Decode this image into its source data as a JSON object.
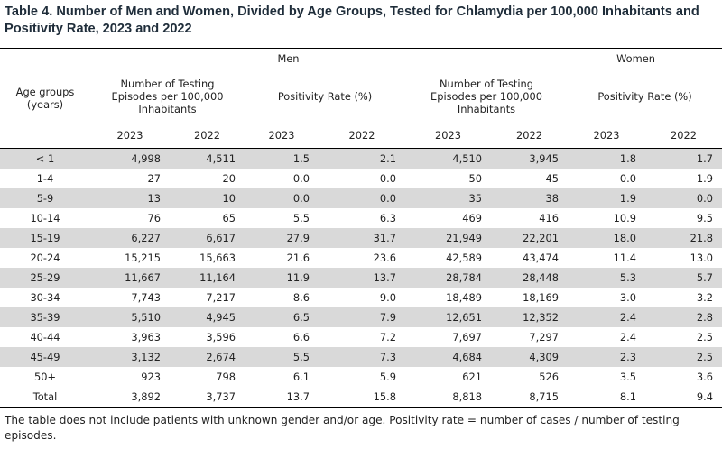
{
  "title": "Table 4. Number of Men and Women, Divided by Age Groups, Tested for Chlamydia per 100,000 Inhabitants and Positivity Rate, 2023 and 2022",
  "header": {
    "age_groups": "Age groups (years)",
    "men": "Men",
    "women": "Women",
    "testing": "Number of Testing Episodes per 100,000 Inhabitants",
    "positivity": "Positivity Rate (%)",
    "year_a": "2023",
    "year_b": "2022"
  },
  "rows": [
    {
      "age": "< 1",
      "men_test_2023": "4,998",
      "men_test_2022": "4,511",
      "men_pos_2023": "1.5",
      "men_pos_2022": "2.1",
      "women_test_2023": "4,510",
      "women_test_2022": "3,945",
      "women_pos_2023": "1.8",
      "women_pos_2022": "1.7"
    },
    {
      "age": "1-4",
      "men_test_2023": "27",
      "men_test_2022": "20",
      "men_pos_2023": "0.0",
      "men_pos_2022": "0.0",
      "women_test_2023": "50",
      "women_test_2022": "45",
      "women_pos_2023": "0.0",
      "women_pos_2022": "1.9"
    },
    {
      "age": "5-9",
      "men_test_2023": "13",
      "men_test_2022": "10",
      "men_pos_2023": "0.0",
      "men_pos_2022": "0.0",
      "women_test_2023": "35",
      "women_test_2022": "38",
      "women_pos_2023": "1.9",
      "women_pos_2022": "0.0"
    },
    {
      "age": "10-14",
      "men_test_2023": "76",
      "men_test_2022": "65",
      "men_pos_2023": "5.5",
      "men_pos_2022": "6.3",
      "women_test_2023": "469",
      "women_test_2022": "416",
      "women_pos_2023": "10.9",
      "women_pos_2022": "9.5"
    },
    {
      "age": "15-19",
      "men_test_2023": "6,227",
      "men_test_2022": "6,617",
      "men_pos_2023": "27.9",
      "men_pos_2022": "31.7",
      "women_test_2023": "21,949",
      "women_test_2022": "22,201",
      "women_pos_2023": "18.0",
      "women_pos_2022": "21.8"
    },
    {
      "age": "20-24",
      "men_test_2023": "15,215",
      "men_test_2022": "15,663",
      "men_pos_2023": "21.6",
      "men_pos_2022": "23.6",
      "women_test_2023": "42,589",
      "women_test_2022": "43,474",
      "women_pos_2023": "11.4",
      "women_pos_2022": "13.0"
    },
    {
      "age": "25-29",
      "men_test_2023": "11,667",
      "men_test_2022": "11,164",
      "men_pos_2023": "11.9",
      "men_pos_2022": "13.7",
      "women_test_2023": "28,784",
      "women_test_2022": "28,448",
      "women_pos_2023": "5.3",
      "women_pos_2022": "5.7"
    },
    {
      "age": "30-34",
      "men_test_2023": "7,743",
      "men_test_2022": "7,217",
      "men_pos_2023": "8.6",
      "men_pos_2022": "9.0",
      "women_test_2023": "18,489",
      "women_test_2022": "18,169",
      "women_pos_2023": "3.0",
      "women_pos_2022": "3.2"
    },
    {
      "age": "35-39",
      "men_test_2023": "5,510",
      "men_test_2022": "4,945",
      "men_pos_2023": "6.5",
      "men_pos_2022": "7.9",
      "women_test_2023": "12,651",
      "women_test_2022": "12,352",
      "women_pos_2023": "2.4",
      "women_pos_2022": "2.8"
    },
    {
      "age": "40-44",
      "men_test_2023": "3,963",
      "men_test_2022": "3,596",
      "men_pos_2023": "6.6",
      "men_pos_2022": "7.2",
      "women_test_2023": "7,697",
      "women_test_2022": "7,297",
      "women_pos_2023": "2.4",
      "women_pos_2022": "2.5"
    },
    {
      "age": "45-49",
      "men_test_2023": "3,132",
      "men_test_2022": "2,674",
      "men_pos_2023": "5.5",
      "men_pos_2022": "7.3",
      "women_test_2023": "4,684",
      "women_test_2022": "4,309",
      "women_pos_2023": "2.3",
      "women_pos_2022": "2.5"
    },
    {
      "age": "50+",
      "men_test_2023": "923",
      "men_test_2022": "798",
      "men_pos_2023": "6.1",
      "men_pos_2022": "5.9",
      "women_test_2023": "621",
      "women_test_2022": "526",
      "women_pos_2023": "3.5",
      "women_pos_2022": "3.6"
    }
  ],
  "total": {
    "age": "Total",
    "men_test_2023": "3,892",
    "men_test_2022": "3,737",
    "men_pos_2023": "13.7",
    "men_pos_2022": "15.8",
    "women_test_2023": "8,818",
    "women_test_2022": "8,715",
    "women_pos_2023": "8.1",
    "women_pos_2022": "9.4"
  },
  "footnote": "The table does not include patients with unknown gender and/or age. Positivity rate = number of cases / number of testing episodes."
}
